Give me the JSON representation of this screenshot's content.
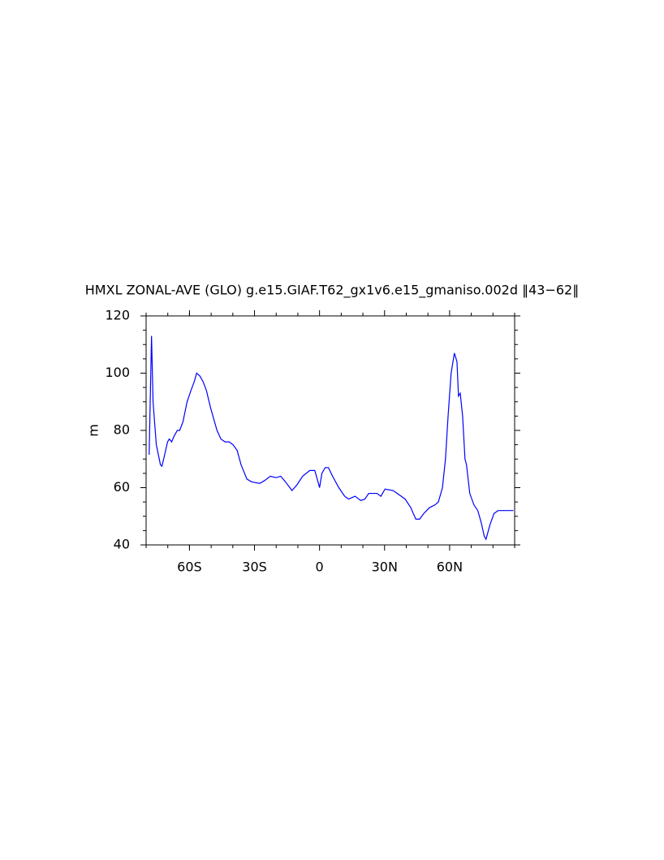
{
  "chart_data": {
    "type": "line",
    "title": "HMXL ZONAL-AVE (GLO) g.e15.GIAF.T62_gx1v6.e15_gmaniso.002d ‖43−62‖",
    "y_label": "m",
    "xlim": [
      -80,
      90
    ],
    "xticks": [
      {
        "value": -60,
        "label": "60S"
      },
      {
        "value": -30,
        "label": "30S"
      },
      0,
      {
        "value": 30,
        "label": "30N"
      },
      {
        "value": 60,
        "label": "60N"
      }
    ],
    "ylim": [
      40,
      120
    ],
    "yticks": [
      40,
      60,
      80,
      100,
      120
    ],
    "x": [
      -78.6,
      -77.5,
      -76.8,
      -75.3,
      -73.4,
      -72.7,
      -71.6,
      -70.1,
      -69.3,
      -68.2,
      -67.1,
      -65.6,
      -64.5,
      -63.0,
      -61.1,
      -59.3,
      -57.8,
      -56.7,
      -55.2,
      -53.7,
      -52.2,
      -50.3,
      -48.8,
      -47.3,
      -45.5,
      -43.6,
      -41.7,
      -39.9,
      -38.0,
      -36.2,
      -33.5,
      -31.3,
      -27.6,
      -25.3,
      -22.7,
      -20.1,
      -17.9,
      -15.7,
      -12.7,
      -10.4,
      -7.8,
      -4.5,
      -2.2,
      -0.7,
      0.0,
      1.1,
      2.6,
      4.1,
      6.0,
      8.9,
      11.6,
      13.4,
      16.4,
      19.0,
      20.9,
      22.7,
      26.5,
      28.3,
      30.2,
      33.9,
      35.8,
      39.5,
      42.1,
      44.4,
      46.2,
      48.1,
      50.7,
      53.3,
      54.8,
      56.7,
      58.1,
      59.3,
      60.7,
      62.2,
      63.4,
      64.1,
      64.9,
      66.0,
      67.1,
      67.8,
      69.3,
      71.2,
      73.0,
      74.5,
      76.0,
      76.8,
      78.6,
      80.5,
      82.4,
      89.4
    ],
    "series": [
      {
        "color": "#0000ff",
        "values": [
          71.5,
          113,
          90,
          75,
          68,
          67.5,
          71,
          76,
          77,
          76,
          78,
          80,
          80,
          83,
          90,
          94,
          97,
          100,
          99,
          97,
          94,
          88,
          84,
          80,
          77,
          76,
          76,
          75,
          73,
          68,
          63,
          62,
          61.5,
          62.5,
          64,
          63.5,
          64,
          62,
          59,
          61,
          64,
          66,
          66,
          62,
          60,
          65,
          67,
          67,
          64,
          60,
          57,
          56,
          57,
          55.5,
          56,
          58,
          58,
          57,
          59.5,
          59,
          58,
          56,
          53,
          49,
          49,
          51,
          53,
          54,
          55,
          60,
          70,
          85,
          100,
          107,
          104,
          92,
          93,
          85,
          70,
          68,
          58,
          54,
          52,
          48,
          43,
          42,
          47,
          51,
          52,
          52
        ]
      }
    ]
  }
}
